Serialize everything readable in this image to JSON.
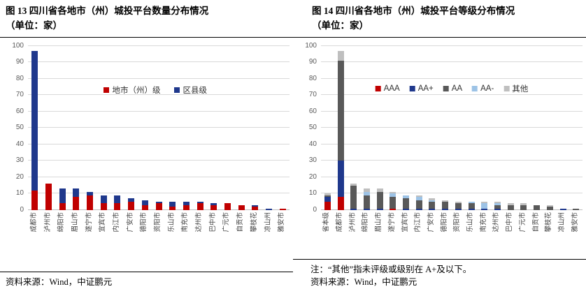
{
  "figures": [
    {
      "title_line1": "图 13 四川省各地市（州）城投平台数量分布情况",
      "title_line2": "（单位：家）",
      "source": "资料来源：Wind，中证鹏元",
      "chart_data": {
        "type": "bar",
        "stacked": true,
        "legend_position": "top-center-inside",
        "grid": true,
        "ylim": [
          0,
          100
        ],
        "ytick_step": 10,
        "categories": [
          "成都市",
          "泸州市",
          "绵阳市",
          "眉山市",
          "遂宁市",
          "宜宾市",
          "内江市",
          "广安市",
          "德阳市",
          "资阳市",
          "乐山市",
          "南充市",
          "达州市",
          "巴中市",
          "广元市",
          "自贡市",
          "攀枝花",
          "凉山州",
          "雅安市"
        ],
        "series": [
          {
            "name": "地市（州）级",
            "color": "#c00000",
            "values": [
              12,
              16,
              4,
              8,
              9,
              4,
              4,
              5,
              3,
              4,
              2,
              3,
              4,
              3,
              4,
              3,
              2,
              0,
              1
            ]
          },
          {
            "name": "区县级",
            "color": "#1f388c",
            "values": [
              85,
              0,
              9,
              5,
              2,
              5,
              5,
              2,
              3,
              1,
              3,
              2,
              1,
              1,
              0,
              0,
              1,
              1,
              0
            ]
          }
        ]
      }
    },
    {
      "title_line1": "图 14 四川省各地市（州）城投平台等级分布情况",
      "title_line2": "（单位：家）",
      "note": "注：“其他”指未评级或级别在 A+及以下。",
      "source": "资料来源：Wind，中证鹏元",
      "chart_data": {
        "type": "bar",
        "stacked": true,
        "legend_position": "top-center-inside",
        "grid": true,
        "ylim": [
          0,
          100
        ],
        "ytick_step": 10,
        "categories": [
          "省本级",
          "成都市",
          "泸州市",
          "绵阳市",
          "眉山市",
          "遂宁市",
          "宜宾市",
          "内江市",
          "广安市",
          "德阳市",
          "资阳市",
          "乐山市",
          "南充市",
          "达州市",
          "巴中市",
          "广元市",
          "自贡市",
          "攀枝花",
          "凉山州",
          "雅安市"
        ],
        "series": [
          {
            "name": "AAA",
            "color": "#c00000",
            "values": [
              5,
              8,
              0,
              0,
              0,
              1,
              0,
              0,
              0,
              0,
              0,
              0,
              0,
              0,
              0,
              0,
              0,
              0,
              0,
              0
            ]
          },
          {
            "name": "AA+",
            "color": "#1f388c",
            "values": [
              3,
              22,
              1,
              1,
              1,
              0,
              1,
              1,
              1,
              1,
              1,
              1,
              1,
              1,
              0,
              0,
              0,
              0,
              1,
              0
            ]
          },
          {
            "name": "AA",
            "color": "#595959",
            "values": [
              1,
              61,
              14,
              8,
              10,
              7,
              6,
              5,
              4,
              4,
              3,
              3,
              0,
              2,
              3,
              3,
              3,
              2,
              0,
              1
            ]
          },
          {
            "name": "AA-",
            "color": "#9dc3e6",
            "values": [
              0,
              0,
              0,
              2,
              0,
              2,
              2,
              2,
              1,
              0,
              0,
              1,
              3,
              1,
              0,
              0,
              0,
              0,
              0,
              0
            ]
          },
          {
            "name": "其他",
            "color": "#bfbfbf",
            "values": [
              1,
              6,
              1,
              2,
              2,
              1,
              0,
              1,
              1,
              1,
              1,
              0,
              1,
              1,
              1,
              1,
              0,
              1,
              0,
              0
            ]
          }
        ]
      }
    }
  ]
}
